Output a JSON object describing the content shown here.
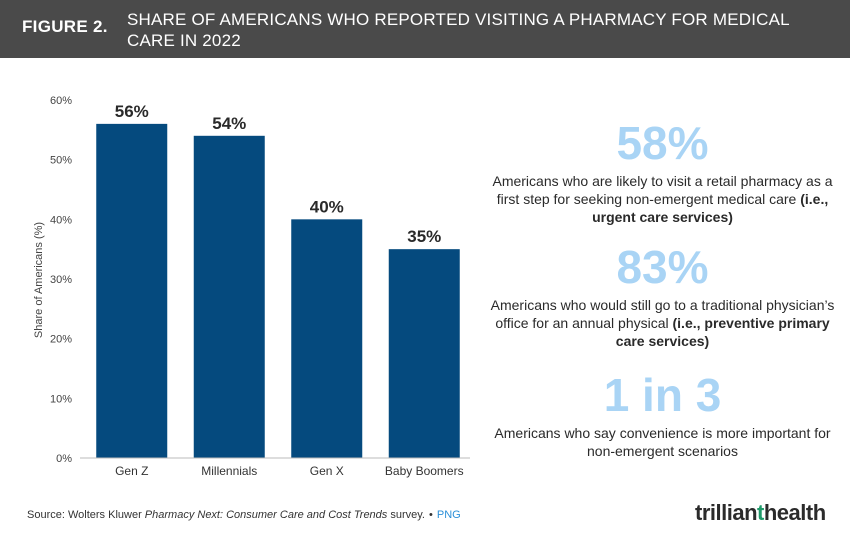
{
  "header": {
    "figure_label": "FIGURE 2.",
    "title": "SHARE OF AMERICANS WHO REPORTED VISITING A PHARMACY FOR MEDICAL CARE IN 2022"
  },
  "chart_data": {
    "type": "bar",
    "categories": [
      "Gen Z",
      "Millennials",
      "Gen X",
      "Baby Boomers"
    ],
    "values": [
      56,
      54,
      40,
      35
    ],
    "data_labels": [
      "56%",
      "54%",
      "40%",
      "35%"
    ],
    "ylabel": "Share of Americans (%)",
    "xlabel": "",
    "ylim": [
      0,
      60
    ],
    "yticks": [
      "0%",
      "10%",
      "20%",
      "30%",
      "40%",
      "50%",
      "60%"
    ],
    "bar_color": "#054a7e",
    "grid": false
  },
  "stats": [
    {
      "value": "58%",
      "text": "Americans who are likely to visit a retail pharmacy as a first step for seeking non-emergent medical care ",
      "bold": "(i.e., urgent care services)"
    },
    {
      "value": "83%",
      "text": "Americans who would still go to a traditional physician’s office for an annual physical ",
      "bold": "(i.e., preventive primary care services)"
    },
    {
      "value": "1 in 3",
      "text": "Americans who say convenience is more important for non-emergent scenarios",
      "bold": ""
    }
  ],
  "source": {
    "prefix": "Source: Wolters Kluwer ",
    "italic": "Pharmacy Next: Consumer Care and Cost Trends",
    "suffix": " survey.",
    "separator": "•",
    "link": "PNG"
  },
  "logo": {
    "text_a": "trillian",
    "text_b": "t",
    "text_c": "health"
  },
  "colors": {
    "header_bg": "#4a4a4a",
    "stat_accent": "#a9d4f5",
    "link": "#2a8fd8"
  }
}
